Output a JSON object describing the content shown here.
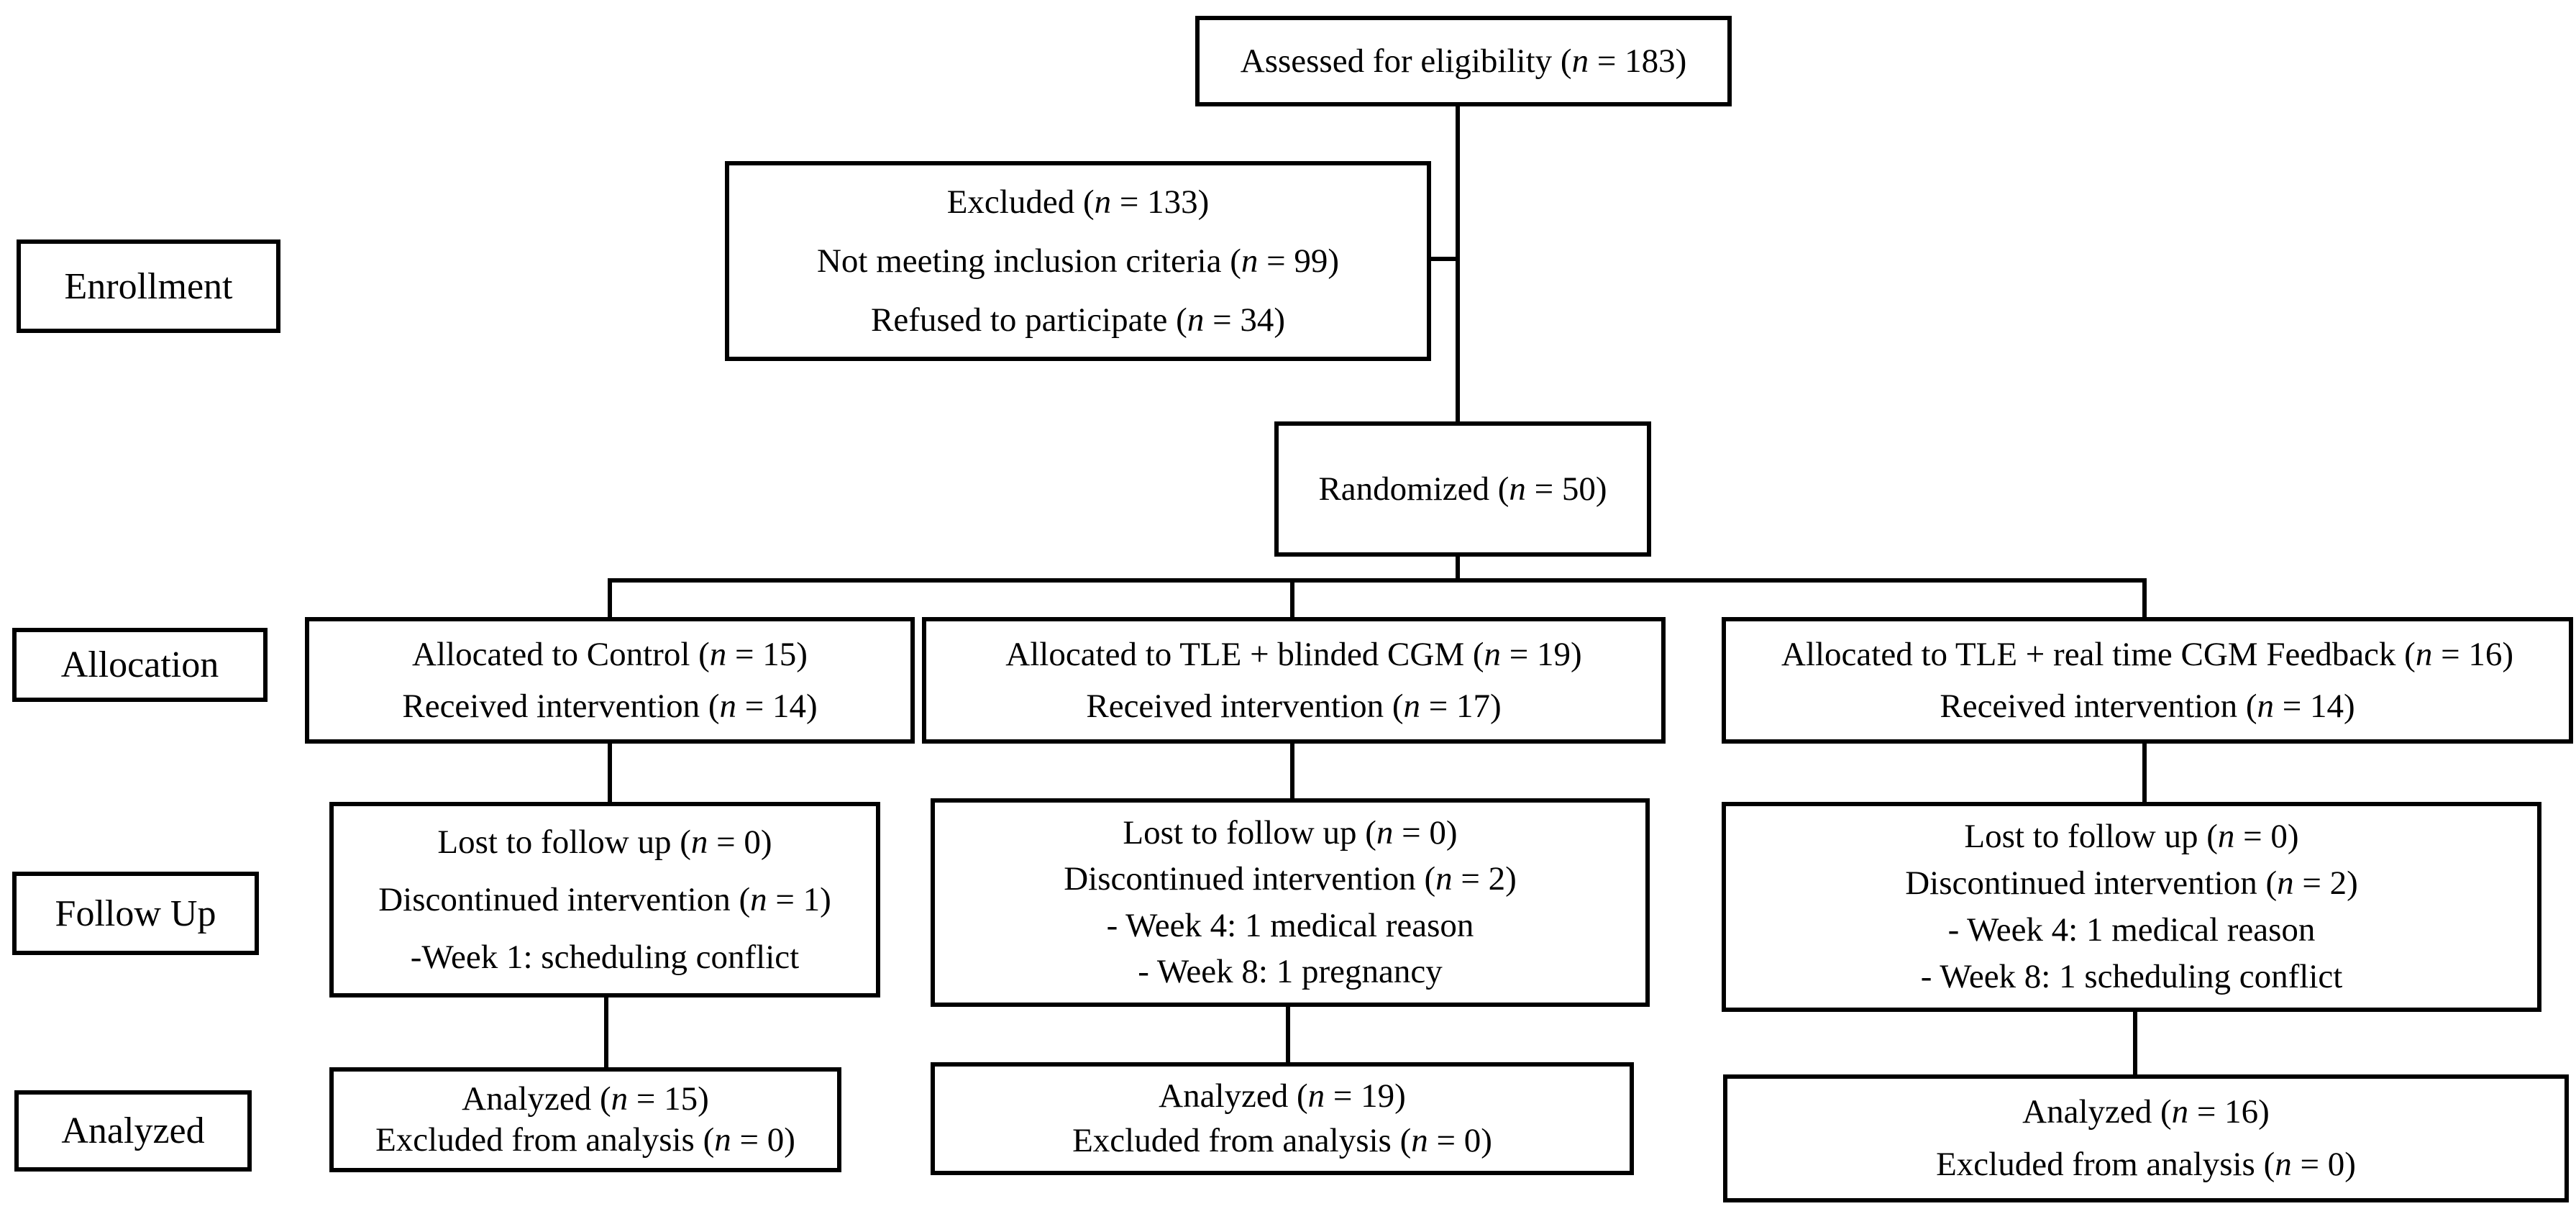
{
  "diagram_type": "CONSORT participant flow diagram",
  "colors": {
    "line": "#000000",
    "background": "#ffffff",
    "text": "#000000"
  },
  "stages": {
    "enrollment": "Enrollment",
    "allocation": "Allocation",
    "follow_up": "Follow Up",
    "analyzed": "Analyzed"
  },
  "boxes": {
    "assessed": {
      "lines": [
        "Assessed for eligibility (n = 183)"
      ]
    },
    "excluded": {
      "lines": [
        "Excluded (n = 133)",
        "Not meeting inclusion criteria (n = 99)",
        "Refused to participate (n = 34)"
      ]
    },
    "randomized": {
      "lines": [
        "Randomized (n = 50)"
      ]
    },
    "alloc_control": {
      "lines": [
        "Allocated to Control (n = 15)",
        "Received intervention (n = 14)"
      ]
    },
    "alloc_blinded": {
      "lines": [
        "Allocated to TLE + blinded CGM (n = 19)",
        "Received intervention (n = 17)"
      ]
    },
    "alloc_realtime": {
      "lines": [
        "Allocated to TLE + real time CGM Feedback (n = 16)",
        "Received intervention (n = 14)"
      ]
    },
    "fu_control": {
      "lines": [
        "Lost to follow up (n = 0)",
        "Discontinued intervention (n = 1)",
        "-Week 1: scheduling conflict"
      ]
    },
    "fu_blinded": {
      "lines": [
        "Lost to follow up (n = 0)",
        "Discontinued intervention (n = 2)",
        "- Week 4: 1 medical reason",
        "- Week 8: 1 pregnancy"
      ]
    },
    "fu_realtime": {
      "lines": [
        "Lost to follow up (n = 0)",
        "Discontinued intervention (n = 2)",
        "- Week 4: 1 medical reason",
        "- Week 8: 1 scheduling conflict"
      ]
    },
    "an_control": {
      "lines": [
        "Analyzed (n = 15)",
        "Excluded from analysis (n = 0)"
      ]
    },
    "an_blinded": {
      "lines": [
        "Analyzed (n = 19)",
        "Excluded from analysis (n = 0)"
      ]
    },
    "an_realtime": {
      "lines": [
        "Analyzed (n = 16)",
        "Excluded from analysis (n = 0)"
      ]
    }
  }
}
